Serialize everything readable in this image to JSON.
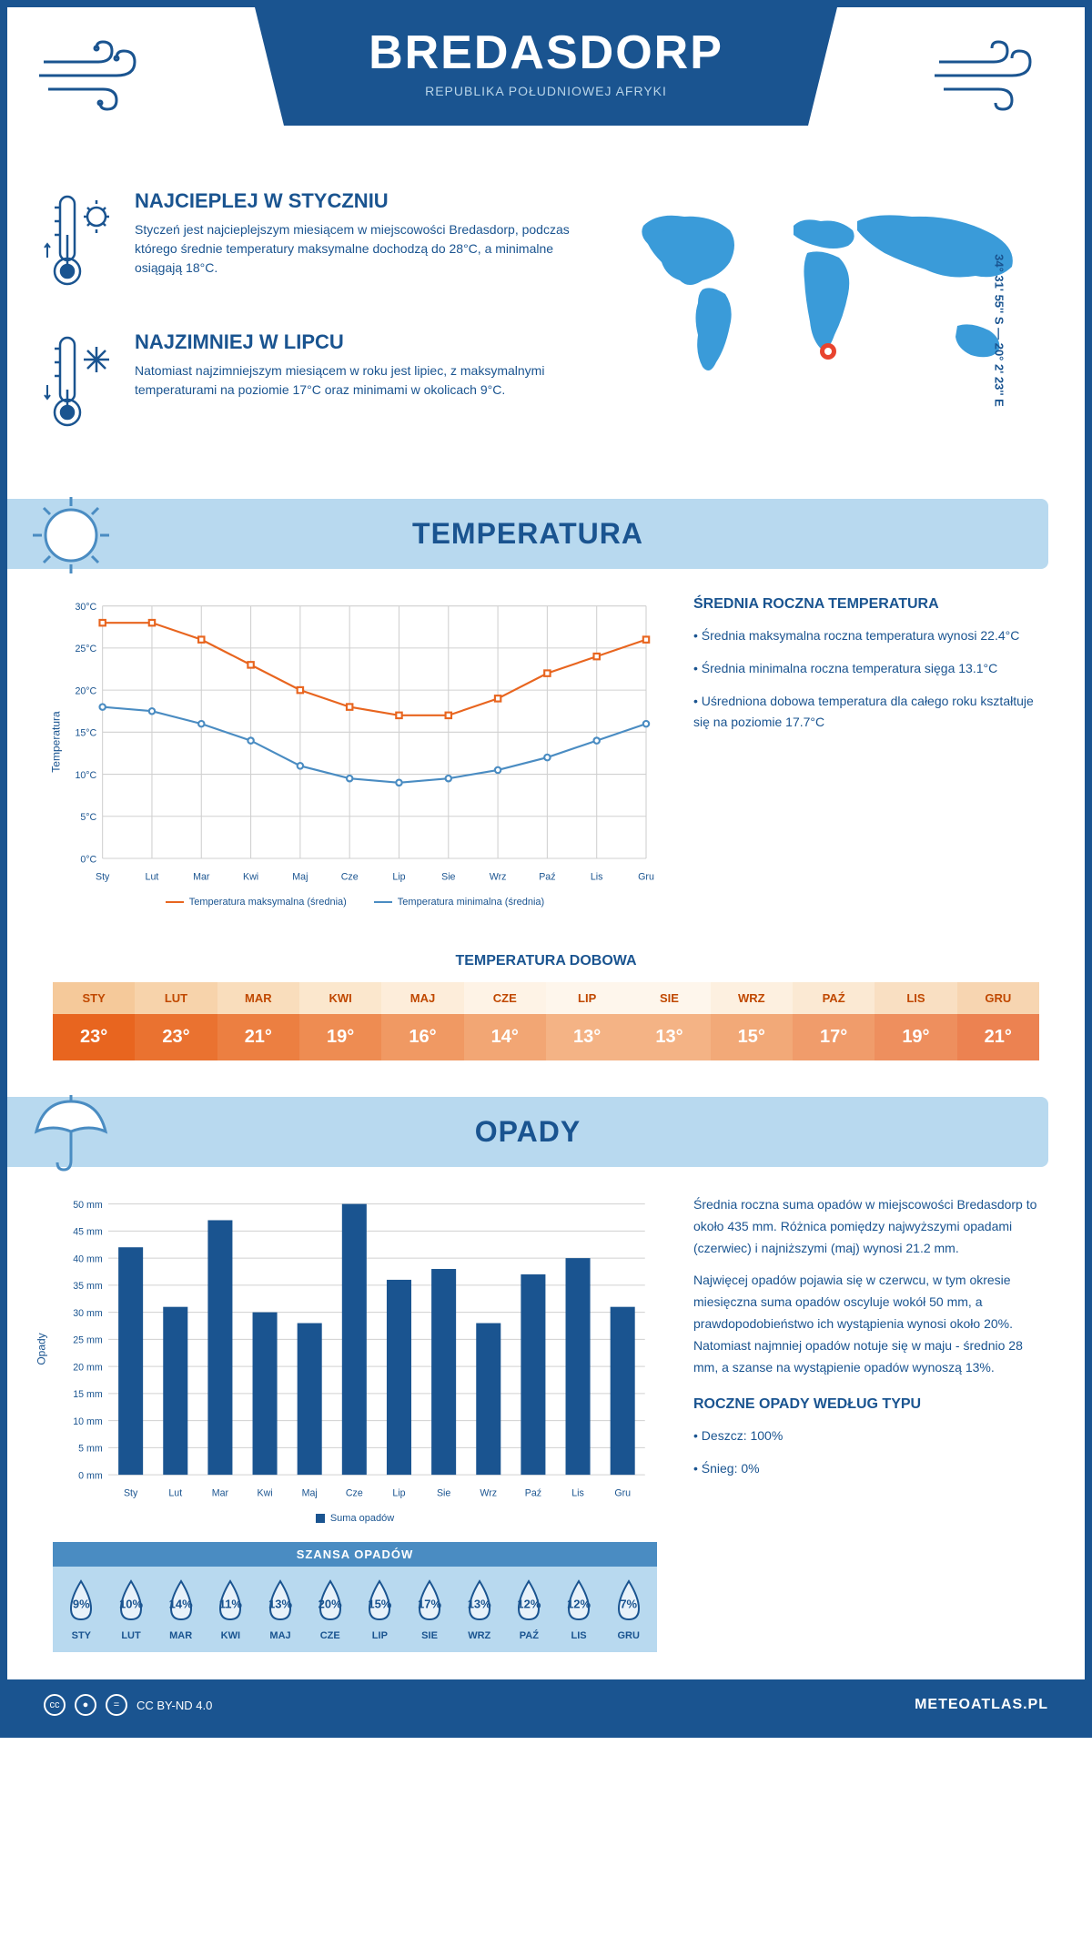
{
  "header": {
    "title": "BREDASDORP",
    "subtitle": "REPUBLIKA POŁUDNIOWEJ AFRYKI"
  },
  "coords": "34° 31' 55'' S — 20° 2' 23'' E",
  "intro": {
    "warm": {
      "title": "NAJCIEPLEJ W STYCZNIU",
      "text": "Styczeń jest najcieplejszym miesiącem w miejscowości Bredasdorp, podczas którego średnie temperatury maksymalne dochodzą do 28°C, a minimalne osiągają 18°C."
    },
    "cold": {
      "title": "NAJZIMNIEJ W LIPCU",
      "text": "Natomiast najzimniejszym miesiącem w roku jest lipiec, z maksymalnymi temperaturami na poziomie 17°C oraz minimami w okolicach 9°C."
    }
  },
  "temperature": {
    "section_title": "TEMPERATURA",
    "info_title": "ŚREDNIA ROCZNA TEMPERATURA",
    "info_bullets": [
      "• Średnia maksymalna roczna temperatura wynosi 22.4°C",
      "• Średnia minimalna roczna temperatura sięga 13.1°C",
      "• Uśredniona dobowa temperatura dla całego roku kształtuje się na poziomie 17.7°C"
    ],
    "chart": {
      "type": "line",
      "months": [
        "Sty",
        "Lut",
        "Mar",
        "Kwi",
        "Maj",
        "Cze",
        "Lip",
        "Sie",
        "Wrz",
        "Paź",
        "Lis",
        "Gru"
      ],
      "ylabel": "Temperatura",
      "ylim": [
        0,
        30
      ],
      "ytick_step": 5,
      "ytick_suffix": "°C",
      "grid_color": "#d0d0d0",
      "series": [
        {
          "name": "Temperatura maksymalna (średnia)",
          "color": "#e8651f",
          "marker": "square",
          "values": [
            28,
            28,
            26,
            23,
            20,
            18,
            17,
            17,
            19,
            22,
            24,
            26
          ]
        },
        {
          "name": "Temperatura minimalna (średnia)",
          "color": "#4a8cc2",
          "marker": "circle",
          "values": [
            18,
            17.5,
            16,
            14,
            11,
            9.5,
            9,
            9.5,
            10.5,
            12,
            14,
            16
          ]
        }
      ]
    },
    "daily": {
      "title": "TEMPERATURA DOBOWA",
      "months": [
        "STY",
        "LUT",
        "MAR",
        "KWI",
        "MAJ",
        "CZE",
        "LIP",
        "SIE",
        "WRZ",
        "PAŹ",
        "LIS",
        "GRU"
      ],
      "values": [
        "23°",
        "23°",
        "21°",
        "19°",
        "16°",
        "14°",
        "13°",
        "13°",
        "15°",
        "17°",
        "19°",
        "21°"
      ],
      "header_colors": [
        "#f5c99a",
        "#f7d3ab",
        "#f9ddbc",
        "#fbe7cd",
        "#fdedda",
        "#fef3e6",
        "#fef6ec",
        "#fef6ec",
        "#fdf0e0",
        "#fbe9d3",
        "#f9dfc2",
        "#f7d5b1"
      ],
      "value_colors": [
        "#e8651f",
        "#ea7230",
        "#ec7f41",
        "#ee8c52",
        "#f09963",
        "#f2a674",
        "#f4b385",
        "#f4b385",
        "#f2a978",
        "#f09c6b",
        "#ee8f5e",
        "#ec8251"
      ],
      "header_text_color": "#c04800"
    }
  },
  "precipitation": {
    "section_title": "OPADY",
    "chart": {
      "type": "bar",
      "months": [
        "Sty",
        "Lut",
        "Mar",
        "Kwi",
        "Maj",
        "Cze",
        "Lip",
        "Sie",
        "Wrz",
        "Paź",
        "Lis",
        "Gru"
      ],
      "ylabel": "Opady",
      "ylim": [
        0,
        50
      ],
      "ytick_step": 5,
      "ytick_suffix": " mm",
      "bar_color": "#1a5490",
      "grid_color": "#d0d0d0",
      "legend_label": "Suma opadów",
      "values": [
        42,
        31,
        47,
        30,
        28,
        50,
        36,
        38,
        28,
        37,
        40,
        31
      ]
    },
    "info_paragraphs": [
      "Średnia roczna suma opadów w miejscowości Bredasdorp to około 435 mm. Różnica pomiędzy najwyższymi opadami (czerwiec) i najniższymi (maj) wynosi 21.2 mm.",
      "Najwięcej opadów pojawia się w czerwcu, w tym okresie miesięczna suma opadów oscyluje wokół 50 mm, a prawdopodobieństwo ich wystąpienia wynosi około 20%. Natomiast najmniej opadów notuje się w maju - średnio 28 mm, a szanse na wystąpienie opadów wynoszą 13%."
    ],
    "chance": {
      "title": "SZANSA OPADÓW",
      "months": [
        "STY",
        "LUT",
        "MAR",
        "KWI",
        "MAJ",
        "CZE",
        "LIP",
        "SIE",
        "WRZ",
        "PAŹ",
        "LIS",
        "GRU"
      ],
      "values": [
        "9%",
        "10%",
        "14%",
        "11%",
        "13%",
        "20%",
        "15%",
        "17%",
        "13%",
        "12%",
        "12%",
        "7%"
      ],
      "drop_fill": "#e8f2fa",
      "drop_stroke": "#1a5490"
    },
    "by_type": {
      "title": "ROCZNE OPADY WEDŁUG TYPU",
      "items": [
        "• Deszcz: 100%",
        "• Śnieg: 0%"
      ]
    }
  },
  "footer": {
    "license": "CC BY-ND 4.0",
    "site": "METEOATLAS.PL"
  },
  "colors": {
    "primary": "#1a5490",
    "light_blue": "#b8d9ef",
    "mid_blue": "#4a8cc2",
    "map_blue": "#3a9bd9",
    "marker_red": "#e8442f"
  }
}
